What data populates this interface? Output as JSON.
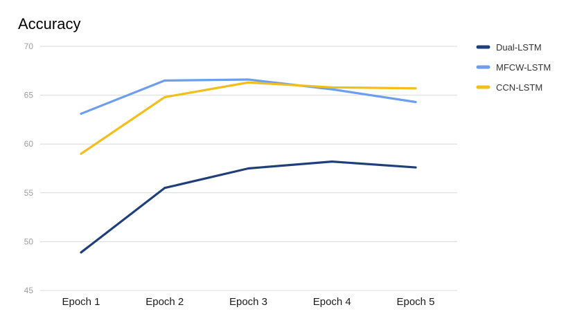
{
  "chart_data": {
    "type": "line",
    "title": "Accuracy",
    "categories": [
      "Epoch 1",
      "Epoch 2",
      "Epoch 3",
      "Epoch 4",
      "Epoch 5"
    ],
    "ylim": [
      45,
      70
    ],
    "yticks": [
      45,
      50,
      55,
      60,
      65,
      70
    ],
    "grid": true,
    "legend_position": "right",
    "series": [
      {
        "name": "Dual-LSTM",
        "color": "#1f3f7a",
        "values": [
          48.9,
          55.5,
          57.5,
          58.2,
          57.6
        ]
      },
      {
        "name": "MFCW-LSTM",
        "color": "#6d9eeb",
        "values": [
          63.1,
          66.5,
          66.6,
          65.6,
          64.3
        ]
      },
      {
        "name": "CCN-LSTM",
        "color": "#f1be1b",
        "values": [
          59.0,
          64.8,
          66.3,
          65.8,
          65.7
        ]
      }
    ]
  }
}
